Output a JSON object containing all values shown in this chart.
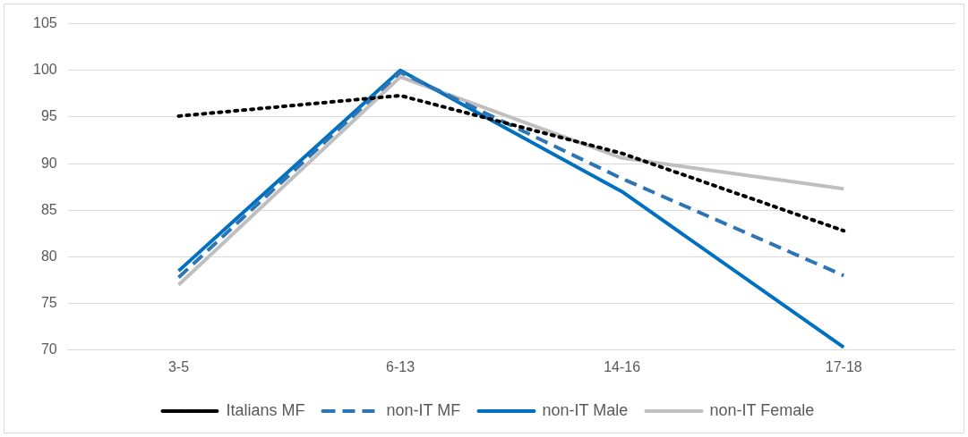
{
  "chart_data": {
    "type": "line",
    "categories": [
      "3-5",
      "6-13",
      "14-16",
      "17-18"
    ],
    "series": [
      {
        "name": "Italians MF",
        "color": "#000000",
        "line_style": "dotted",
        "values": [
          95.1,
          97.3,
          91.1,
          82.8
        ]
      },
      {
        "name": "non-IT MF",
        "color": "#2e75b6",
        "line_style": "dashed",
        "values": [
          77.8,
          99.8,
          88.4,
          78.0
        ]
      },
      {
        "name": "non-IT Male",
        "color": "#0070c0",
        "line_style": "solid",
        "values": [
          78.5,
          100.0,
          87.0,
          70.3
        ]
      },
      {
        "name": "non-IT Female",
        "color": "#bfbfbf",
        "line_style": "solid",
        "values": [
          77.0,
          99.3,
          90.6,
          87.3
        ]
      }
    ],
    "ylim": [
      70,
      105
    ],
    "yticks": [
      70,
      75,
      80,
      85,
      90,
      95,
      100,
      105
    ],
    "grid": "y",
    "legend": "bottom",
    "marker": "none"
  }
}
